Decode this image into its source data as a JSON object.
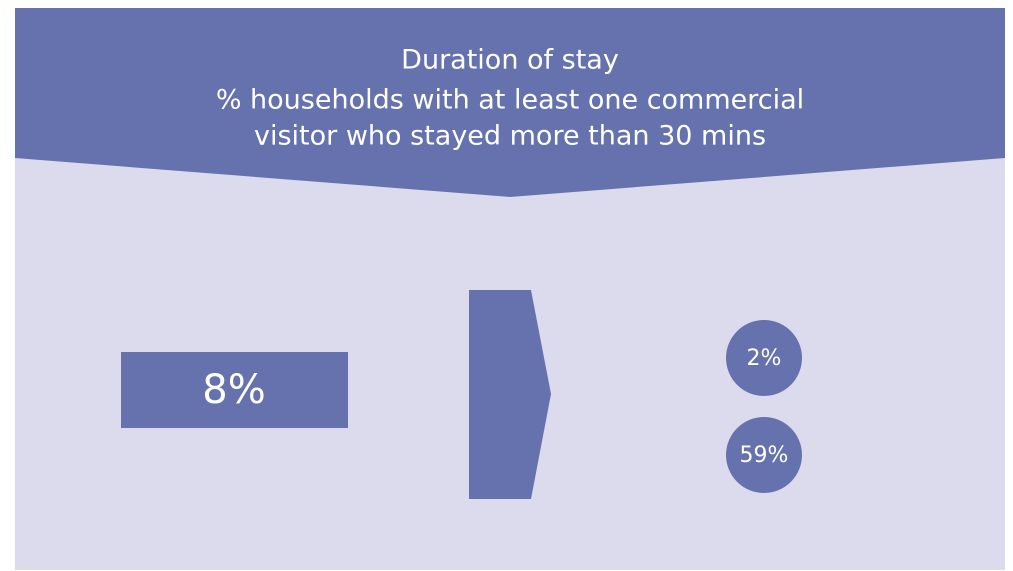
{
  "header": {
    "title": "Duration of stay",
    "subtitle_lines": [
      "% households with at least one commercial",
      "visitor who stayed more than 30 mins"
    ]
  },
  "left_box": {
    "label": "8%"
  },
  "circles": [
    {
      "label": "2%"
    },
    {
      "label": "59%"
    }
  ]
}
